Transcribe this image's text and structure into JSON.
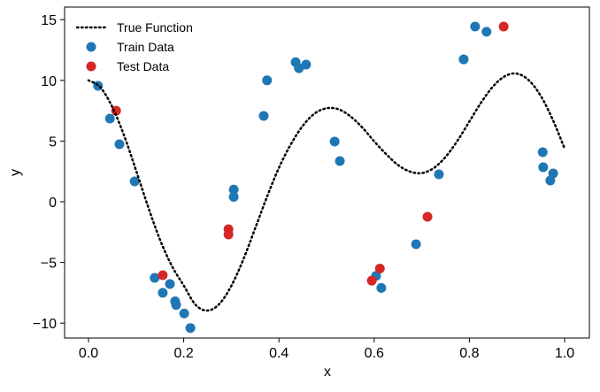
{
  "chart_data": {
    "type": "scatter",
    "title": "",
    "xlabel": "x",
    "ylabel": "y",
    "xlim": [
      -0.05,
      1.05
    ],
    "ylim": [
      -11.0,
      16.0
    ],
    "xticks": [
      "0.0",
      "0.2",
      "0.4",
      "0.6",
      "0.8",
      "1.0"
    ],
    "yticks": [
      "−10",
      "−5",
      "0",
      "5",
      "10",
      "15"
    ],
    "xtick_values": [
      0,
      0.2,
      0.4,
      0.6,
      0.8,
      1.0
    ],
    "ytick_values": [
      -10,
      -5,
      0,
      5,
      10,
      15
    ],
    "grid": false,
    "legend_placement": "top-left",
    "series": [
      {
        "name": "True Function",
        "kind": "line",
        "style": "dotted",
        "color": "#000000",
        "x": [
          0,
          0.025,
          0.05,
          0.075,
          0.1,
          0.125,
          0.15,
          0.175,
          0.2,
          0.225,
          0.25,
          0.275,
          0.3,
          0.325,
          0.35,
          0.375,
          0.4,
          0.425,
          0.45,
          0.475,
          0.5,
          0.525,
          0.55,
          0.575,
          0.6,
          0.625,
          0.65,
          0.675,
          0.7,
          0.725,
          0.75,
          0.775,
          0.8,
          0.825,
          0.85,
          0.875,
          0.9,
          0.925,
          0.95,
          0.975,
          1.0
        ],
        "y": [
          10.0,
          9.42,
          7.8,
          5.43,
          2.57,
          -0.39,
          -3.11,
          -5.28,
          -6.9,
          -8.49,
          -8.96,
          -8.41,
          -6.93,
          -4.77,
          -2.2,
          0.41,
          2.8,
          4.73,
          6.25,
          7.27,
          7.7,
          7.62,
          7.04,
          6.12,
          4.98,
          3.93,
          3.03,
          2.49,
          2.36,
          2.77,
          3.69,
          5.03,
          6.61,
          8.19,
          9.51,
          10.35,
          10.55,
          10.0,
          8.71,
          6.77,
          4.38
        ]
      },
      {
        "name": "Train Data",
        "kind": "scatter",
        "color": "#1f77b4",
        "x": [
          0.02,
          0.045,
          0.065,
          0.097,
          0.139,
          0.156,
          0.171,
          0.182,
          0.184,
          0.201,
          0.214,
          0.305,
          0.305,
          0.368,
          0.375,
          0.435,
          0.442,
          0.457,
          0.517,
          0.528,
          0.604,
          0.615,
          0.688,
          0.736,
          0.788,
          0.812,
          0.836,
          0.954,
          0.955,
          0.976,
          0.97
        ],
        "y": [
          9.55,
          6.85,
          4.74,
          1.68,
          -6.27,
          -7.5,
          -6.78,
          -8.2,
          -8.5,
          -9.2,
          -10.4,
          1.0,
          0.4,
          7.07,
          10.0,
          11.5,
          11.0,
          11.3,
          4.96,
          3.35,
          -6.1,
          -7.1,
          -3.5,
          2.26,
          11.73,
          14.43,
          14.0,
          4.08,
          2.84,
          2.33,
          1.75
        ]
      },
      {
        "name": "Test Data",
        "kind": "scatter",
        "color": "#d62728",
        "x": [
          0.058,
          0.156,
          0.294,
          0.294,
          0.595,
          0.612,
          0.712,
          0.872
        ],
        "y": [
          7.5,
          -6.05,
          -2.26,
          -2.7,
          -6.5,
          -5.5,
          -1.24,
          14.43
        ]
      }
    ]
  }
}
